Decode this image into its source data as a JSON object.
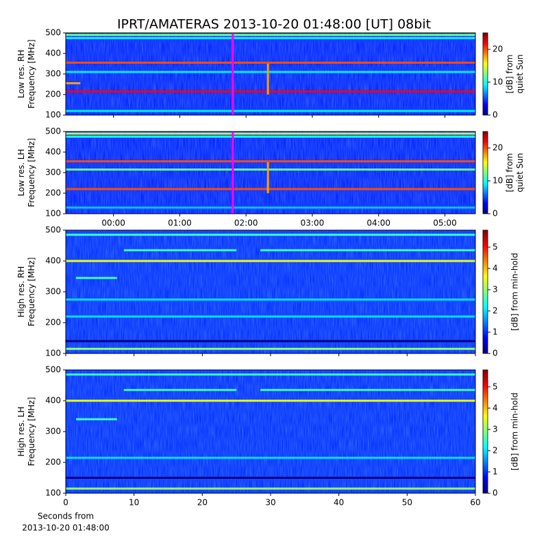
{
  "chart_data": [
    {
      "type": "spectrogram",
      "title": "IPRT/AMATERAS 2013-10-20 01:48:00 [UT]   08bit",
      "ylabel": [
        "Low res. RH",
        "Frequency [MHz]"
      ],
      "colormap": "jet",
      "xlim": [
        -0.72,
        5.46
      ],
      "xticks": [
        {
          "value": 0,
          "label": "00:00"
        },
        {
          "value": 1,
          "label": "01:00"
        },
        {
          "value": 2,
          "label": "02:00"
        },
        {
          "value": 3,
          "label": "03:00"
        },
        {
          "value": 4,
          "label": "04:00"
        },
        {
          "value": 5,
          "label": "05:00"
        }
      ],
      "show_xticklabels": false,
      "ylim": [
        100,
        500
      ],
      "yticks": [
        100,
        200,
        300,
        400,
        500
      ],
      "background": 4,
      "bands": [
        {
          "freq": 490,
          "value": 12
        },
        {
          "freq": 475,
          "value": 9
        },
        {
          "freq": 355,
          "value": 20
        },
        {
          "freq": 310,
          "value": 9
        },
        {
          "freq": 255,
          "value": 18,
          "x": [
            -0.72,
            -0.5
          ]
        },
        {
          "freq": 215,
          "value": 22
        },
        {
          "freq": 120,
          "value": 9
        }
      ],
      "bursts": [
        {
          "x": 2.33,
          "freq": [
            200,
            350
          ],
          "value": 18
        }
      ],
      "marker": {
        "x": 1.8,
        "color": "#ff00ff"
      },
      "colorbar": {
        "label": [
          "[dB] from",
          "quiet Sun"
        ],
        "lim": [
          0,
          25
        ],
        "ticks": [
          0,
          10,
          20
        ]
      }
    },
    {
      "type": "spectrogram",
      "ylabel": [
        "Low res. LH",
        "Frequency [MHz]"
      ],
      "colormap": "jet",
      "xlim": [
        -0.72,
        5.46
      ],
      "xticks": [
        {
          "value": 0,
          "label": "00:00"
        },
        {
          "value": 1,
          "label": "01:00"
        },
        {
          "value": 2,
          "label": "02:00"
        },
        {
          "value": 3,
          "label": "03:00"
        },
        {
          "value": 4,
          "label": "04:00"
        },
        {
          "value": 5,
          "label": "05:00"
        }
      ],
      "show_xticklabels": true,
      "ylim": [
        100,
        500
      ],
      "yticks": [
        100,
        200,
        300,
        400,
        500
      ],
      "background": 4,
      "bands": [
        {
          "freq": 490,
          "value": 14
        },
        {
          "freq": 475,
          "value": 10
        },
        {
          "freq": 355,
          "value": 20
        },
        {
          "freq": 315,
          "value": 12
        },
        {
          "freq": 220,
          "value": 20
        },
        {
          "freq": 130,
          "value": 8
        }
      ],
      "bursts": [
        {
          "x": 2.33,
          "freq": [
            200,
            350
          ],
          "value": 18
        }
      ],
      "marker": {
        "x": 1.8,
        "color": "#ff00ff"
      },
      "colorbar": {
        "label": [
          "[dB] from",
          "quiet Sun"
        ],
        "lim": [
          0,
          25
        ],
        "ticks": [
          0,
          10,
          20
        ]
      }
    },
    {
      "type": "spectrogram",
      "ylabel": [
        "High res. RH",
        "Frequency [MHz]"
      ],
      "colormap": "jet",
      "xlim": [
        0,
        60
      ],
      "xticks": [
        0,
        10,
        20,
        30,
        40,
        50,
        60
      ],
      "show_xticklabels": false,
      "ylim": [
        100,
        500
      ],
      "yticks": [
        100,
        200,
        300,
        400,
        500
      ],
      "background": 1,
      "bands": [
        {
          "freq": 485,
          "value": 2.5
        },
        {
          "freq": 435,
          "value": 2.5,
          "x": [
            8.5,
            25
          ]
        },
        {
          "freq": 435,
          "value": 2.5,
          "x": [
            28.5,
            60
          ]
        },
        {
          "freq": 400,
          "value": 3.5
        },
        {
          "freq": 345,
          "value": 2.5,
          "x": [
            1.5,
            7.5
          ]
        },
        {
          "freq": 275,
          "value": 2
        },
        {
          "freq": 220,
          "value": 2
        },
        {
          "freq": 140,
          "value": 0
        },
        {
          "freq": 115,
          "value": 3
        }
      ],
      "colorbar": {
        "label": [
          "[dB] from min-hold"
        ],
        "lim": [
          0,
          5.8
        ],
        "ticks": [
          0,
          1,
          2,
          3,
          4,
          5
        ]
      }
    },
    {
      "type": "spectrogram",
      "ylabel": [
        "High res. LH",
        "Frequency [MHz]"
      ],
      "colormap": "jet",
      "xlim": [
        0,
        60
      ],
      "xticks": [
        0,
        10,
        20,
        30,
        40,
        50,
        60
      ],
      "show_xticklabels": true,
      "xlabel": [
        "Seconds from",
        "2013-10-20 01:48:00"
      ],
      "ylim": [
        100,
        500
      ],
      "yticks": [
        100,
        200,
        300,
        400,
        500
      ],
      "background": 1,
      "bands": [
        {
          "freq": 485,
          "value": 2.5
        },
        {
          "freq": 435,
          "value": 2.5,
          "x": [
            8.5,
            25
          ]
        },
        {
          "freq": 435,
          "value": 2.5,
          "x": [
            28.5,
            60
          ]
        },
        {
          "freq": 400,
          "value": 3.5
        },
        {
          "freq": 340,
          "value": 2.5,
          "x": [
            1.5,
            7.5
          ]
        },
        {
          "freq": 215,
          "value": 2
        },
        {
          "freq": 150,
          "value": 0
        },
        {
          "freq": 115,
          "value": 3
        }
      ],
      "colorbar": {
        "label": [
          "[dB] from min-hold"
        ],
        "lim": [
          0,
          5.8
        ],
        "ticks": [
          0,
          1,
          2,
          3,
          4,
          5
        ]
      }
    }
  ]
}
